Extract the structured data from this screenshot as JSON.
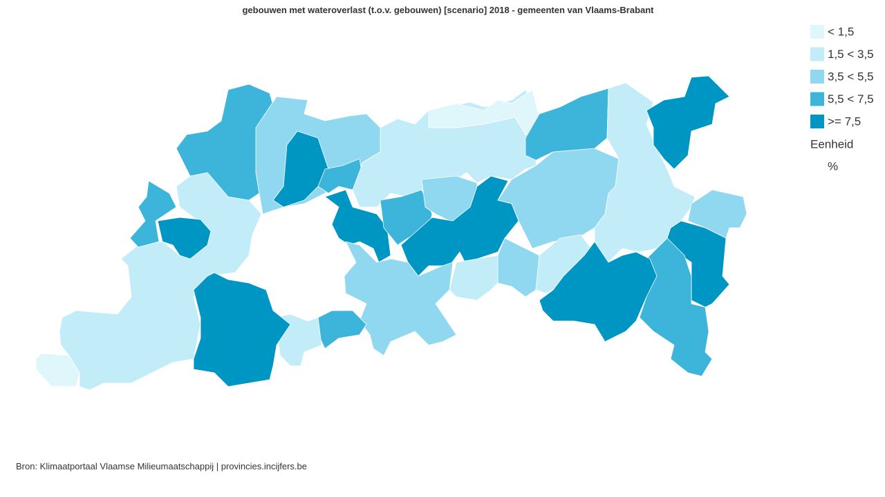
{
  "title": "gebouwen met wateroverlast (t.o.v. gebouwen) [scenario] 2018 - gemeenten van Vlaams-Brabant",
  "legend": {
    "items": [
      {
        "label": "< 1,5",
        "color": "#dff6fb"
      },
      {
        "label": "1,5 < 3,5",
        "color": "#c2ecf8"
      },
      {
        "label": "3,5 < 5,5",
        "color": "#8fd8ef"
      },
      {
        "label": "5,5 < 7,5",
        "color": "#3db4da"
      },
      {
        "label": ">= 7,5",
        "color": "#0096c4"
      }
    ],
    "unit_title": "Eenheid",
    "unit": "%"
  },
  "source": "Bron: Klimaatportaal Vlaamse Milieumaatschappij | provincies.incijfers.be"
}
